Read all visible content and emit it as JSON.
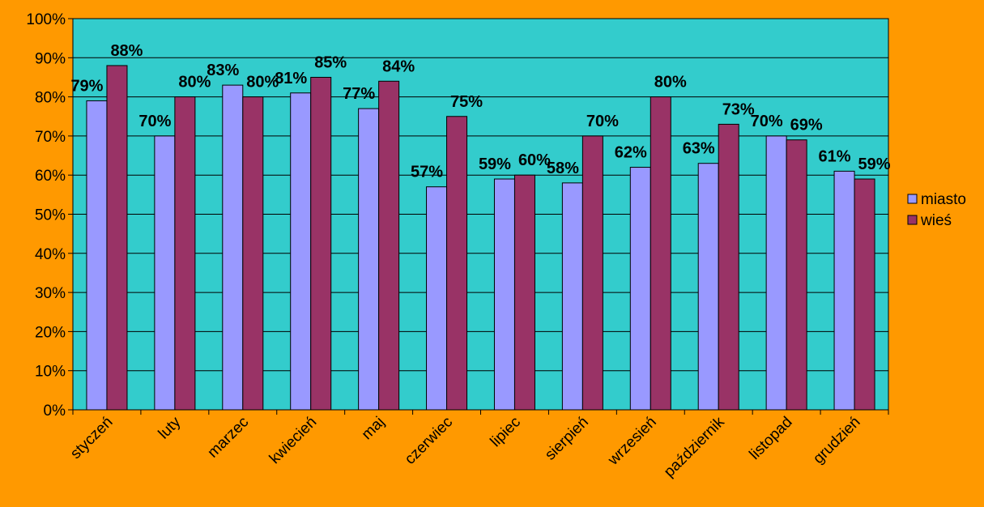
{
  "chart_data": {
    "type": "bar",
    "categories": [
      "styczeń",
      "luty",
      "marzec",
      "kwiecień",
      "maj",
      "czerwiec",
      "lipiec",
      "sierpień",
      "wrzesień",
      "październik",
      "listopad",
      "grudzień"
    ],
    "series": [
      {
        "name": "miasto",
        "values": [
          79,
          70,
          83,
          81,
          77,
          57,
          59,
          58,
          62,
          63,
          70,
          61
        ],
        "color": "#9999FF"
      },
      {
        "name": "wieś",
        "values": [
          88,
          80,
          80,
          85,
          84,
          75,
          60,
          70,
          80,
          73,
          69,
          59
        ],
        "color": "#993366"
      }
    ],
    "value_format": "percent",
    "ylim": [
      0,
      100
    ],
    "yticks": [
      "0%",
      "10%",
      "20%",
      "30%",
      "40%",
      "50%",
      "60%",
      "70%",
      "80%",
      "90%",
      "100%"
    ],
    "grid": true,
    "legend": "right",
    "plot_background": "#33CCCC",
    "page_background": "#FF9900"
  }
}
